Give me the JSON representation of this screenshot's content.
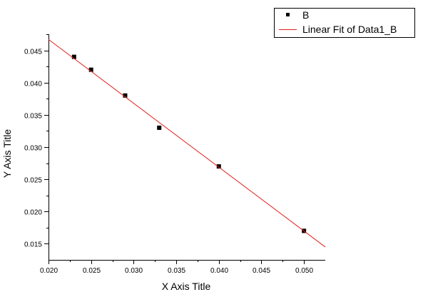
{
  "chart_data": {
    "type": "scatter",
    "xlabel": "X Axis Title",
    "ylabel": "Y Axis Title",
    "xlim": [
      0.02,
      0.0525
    ],
    "ylim": [
      0.0125,
      0.0475
    ],
    "x_ticks": [
      0.02,
      0.025,
      0.03,
      0.035,
      0.04,
      0.045,
      0.05
    ],
    "x_tick_labels": [
      "0.020",
      "0.025",
      "0.030",
      "0.035",
      "0.040",
      "0.045",
      "0.050"
    ],
    "y_ticks": [
      0.015,
      0.02,
      0.025,
      0.03,
      0.035,
      0.04,
      0.045
    ],
    "y_tick_labels": [
      "0.015",
      "0.020",
      "0.025",
      "0.030",
      "0.035",
      "0.040",
      "0.045"
    ],
    "grid": false,
    "legend_position": "top-right",
    "series": [
      {
        "name": "B",
        "kind": "points",
        "marker": "square",
        "color": "#000000",
        "x": [
          0.023,
          0.025,
          0.029,
          0.033,
          0.04,
          0.05
        ],
        "y": [
          0.044,
          0.042,
          0.038,
          0.033,
          0.027,
          0.017
        ]
      },
      {
        "name": "Linear Fit of Data1_B",
        "kind": "line",
        "color": "#e0201b",
        "x": [
          0.02,
          0.0525
        ],
        "y": [
          0.0467,
          0.0145
        ]
      }
    ]
  }
}
